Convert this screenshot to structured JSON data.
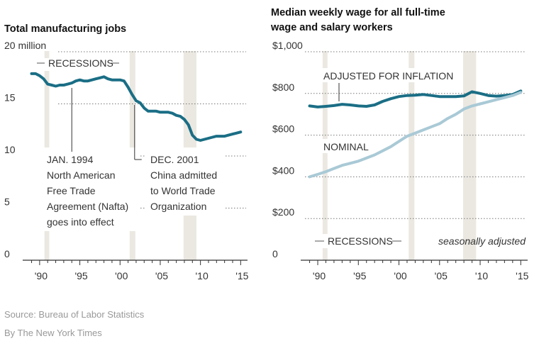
{
  "chart_data": [
    {
      "type": "line",
      "title": "Total manufacturing jobs",
      "ylabel": "",
      "xlabel": "",
      "xlim": [
        1988.6,
        2015.5
      ],
      "ylim": [
        0,
        20
      ],
      "y_ticks": [
        {
          "value": 20,
          "label": "20 million"
        },
        {
          "value": 15,
          "label": "15"
        },
        {
          "value": 10,
          "label": "10"
        },
        {
          "value": 5,
          "label": "5"
        },
        {
          "value": 0,
          "label": "0"
        }
      ],
      "x_ticks": [
        {
          "value": 1990,
          "label": "'90"
        },
        {
          "value": 1995,
          "label": "'95"
        },
        {
          "value": 2000,
          "label": "'00"
        },
        {
          "value": 2005,
          "label": "'05"
        },
        {
          "value": 2010,
          "label": "'10"
        },
        {
          "value": 2015,
          "label": "'15"
        }
      ],
      "recessions": [
        [
          1990.6,
          1991.2
        ],
        [
          2001.2,
          2001.9
        ],
        [
          2007.9,
          2009.5
        ]
      ],
      "recessions_label": "RECESSIONS",
      "series": [
        {
          "name": "",
          "color": "#1a6e85",
          "x": [
            1989.0,
            1989.5,
            1990.0,
            1990.5,
            1991.0,
            1991.5,
            1992.0,
            1992.5,
            1993.0,
            1993.5,
            1994.0,
            1994.5,
            1995.0,
            1995.5,
            1996.0,
            1996.5,
            1997.0,
            1997.5,
            1998.0,
            1998.5,
            1999.0,
            1999.5,
            2000.0,
            2000.5,
            2001.0,
            2001.5,
            2002.0,
            2002.5,
            2003.0,
            2003.5,
            2004.0,
            2004.5,
            2005.0,
            2005.5,
            2006.0,
            2006.5,
            2007.0,
            2007.5,
            2008.0,
            2008.5,
            2009.0,
            2009.5,
            2010.0,
            2010.5,
            2011.0,
            2011.5,
            2012.0,
            2012.5,
            2013.0,
            2013.5,
            2014.0,
            2014.5,
            2015.0
          ],
          "y": [
            17.9,
            17.9,
            17.7,
            17.4,
            16.9,
            16.8,
            16.7,
            16.8,
            16.8,
            16.9,
            17.0,
            17.2,
            17.3,
            17.2,
            17.2,
            17.3,
            17.4,
            17.5,
            17.6,
            17.4,
            17.3,
            17.3,
            17.3,
            17.2,
            16.6,
            15.9,
            15.3,
            15.1,
            14.6,
            14.3,
            14.3,
            14.3,
            14.2,
            14.2,
            14.2,
            14.1,
            13.9,
            13.8,
            13.5,
            13.0,
            12.0,
            11.6,
            11.5,
            11.6,
            11.7,
            11.8,
            11.9,
            11.9,
            11.9,
            12.0,
            12.1,
            12.2,
            12.3
          ]
        }
      ],
      "annotations": [
        {
          "x": 1994.0,
          "lines": [
            "JAN. 1994",
            "North American",
            "Free Trade",
            "Agreement (Nafta)",
            "goes into effect"
          ]
        },
        {
          "x": 2001.9,
          "lines": [
            "DEC. 2001",
            "China admitted",
            "to World Trade",
            "Organization"
          ]
        }
      ]
    },
    {
      "type": "line",
      "title_lines": [
        "Median weekly wage for all full-time",
        "wage and salary workers"
      ],
      "ylabel": "",
      "xlabel": "",
      "xlim": [
        1988.6,
        2015.5
      ],
      "ylim": [
        0,
        1000
      ],
      "y_ticks": [
        {
          "value": 1000,
          "label": "$1,000"
        },
        {
          "value": 800,
          "label": "$800"
        },
        {
          "value": 600,
          "label": "$600"
        },
        {
          "value": 400,
          "label": "$400"
        },
        {
          "value": 200,
          "label": "$200"
        },
        {
          "value": 0,
          "label": "0"
        }
      ],
      "x_ticks": [
        {
          "value": 1990,
          "label": "'90"
        },
        {
          "value": 1995,
          "label": "'95"
        },
        {
          "value": 2000,
          "label": "'00"
        },
        {
          "value": 2005,
          "label": "'05"
        },
        {
          "value": 2010,
          "label": "'10"
        },
        {
          "value": 2015,
          "label": "'15"
        }
      ],
      "recessions": [
        [
          1990.6,
          1991.2
        ],
        [
          2001.2,
          2001.9
        ],
        [
          2007.9,
          2009.5
        ]
      ],
      "recessions_label": "RECESSIONS",
      "note": "seasonally adjusted",
      "series": [
        {
          "name": "ADJUSTED FOR INFLATION",
          "color": "#1a6e85",
          "x": [
            1989.0,
            1990.0,
            1991.0,
            1992.0,
            1993.0,
            1994.0,
            1995.0,
            1996.0,
            1997.0,
            1998.0,
            1999.0,
            2000.0,
            2001.0,
            2002.0,
            2003.0,
            2004.0,
            2005.0,
            2006.0,
            2007.0,
            2008.0,
            2009.0,
            2010.0,
            2011.0,
            2012.0,
            2013.0,
            2014.0,
            2015.0
          ],
          "y": [
            740,
            735,
            738,
            742,
            748,
            745,
            740,
            738,
            745,
            762,
            775,
            785,
            790,
            792,
            795,
            790,
            785,
            785,
            785,
            788,
            808,
            800,
            790,
            787,
            790,
            795,
            812
          ]
        },
        {
          "name": "NOMINAL",
          "color": "#a9c9d6",
          "x": [
            1989.0,
            1990.0,
            1991.0,
            1992.0,
            1993.0,
            1994.0,
            1995.0,
            1996.0,
            1997.0,
            1998.0,
            1999.0,
            2000.0,
            2001.0,
            2002.0,
            2003.0,
            2004.0,
            2005.0,
            2006.0,
            2007.0,
            2008.0,
            2009.0,
            2010.0,
            2011.0,
            2012.0,
            2013.0,
            2014.0,
            2015.0
          ],
          "y": [
            400,
            412,
            425,
            440,
            455,
            465,
            475,
            490,
            505,
            525,
            545,
            570,
            595,
            610,
            625,
            640,
            655,
            680,
            700,
            725,
            740,
            750,
            760,
            770,
            780,
            790,
            805
          ]
        }
      ]
    }
  ],
  "footer": {
    "source": "Source: Bureau of Labor Statistics",
    "credit": "By The New York Times"
  }
}
